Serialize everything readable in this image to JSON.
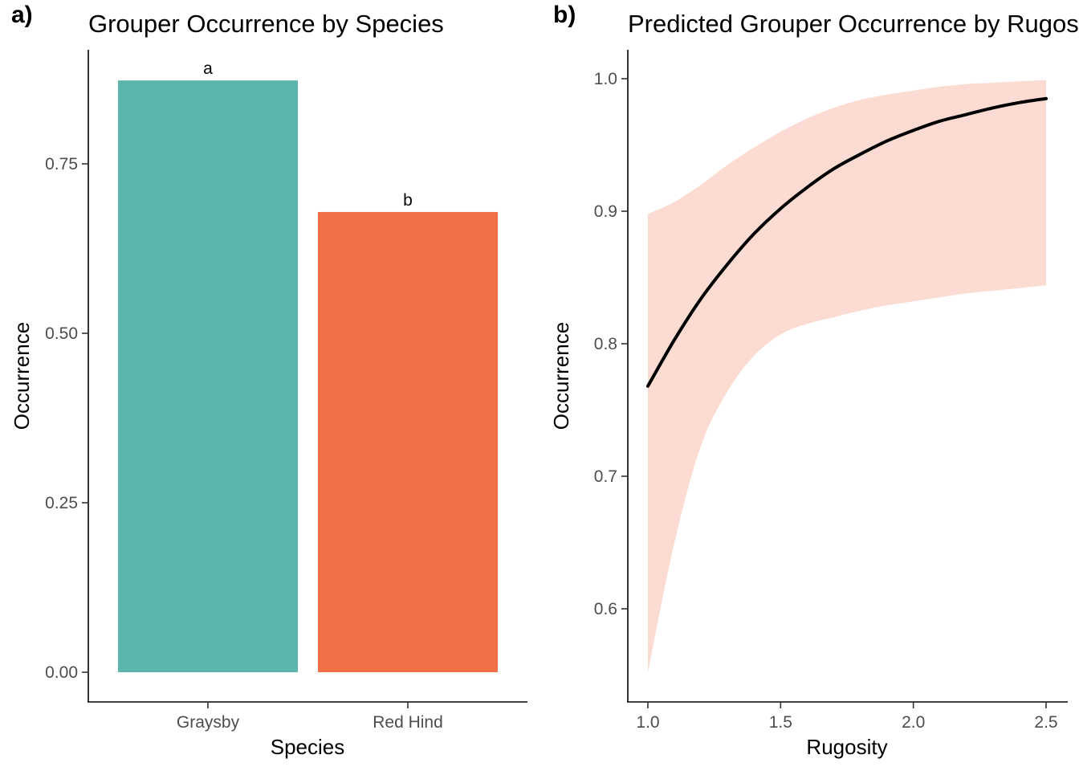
{
  "chart_data": [
    {
      "type": "bar",
      "panel_tag": "a)",
      "title": "Grouper Occurrence by Species",
      "xlabel": "Species",
      "ylabel": "Occurrence",
      "categories": [
        "Graysby",
        "Red Hind"
      ],
      "values": [
        0.873,
        0.679
      ],
      "bar_labels": [
        "a",
        "b"
      ],
      "colors": [
        "#5BB5AB",
        "#F37046"
      ],
      "ylim": [
        0,
        0.88
      ],
      "yticks": [
        0.0,
        0.25,
        0.5,
        0.75
      ],
      "ytick_labels": [
        "0.00",
        "0.25",
        "0.50",
        "0.75"
      ],
      "grid": false
    },
    {
      "type": "line",
      "panel_tag": "b)",
      "title": "Predicted Grouper Occurrence by Rugosity",
      "xlabel": "Rugosity",
      "ylabel": "Occurrence",
      "x": [
        1.0,
        1.1,
        1.2,
        1.3,
        1.4,
        1.5,
        1.6,
        1.7,
        1.8,
        1.9,
        2.0,
        2.1,
        2.2,
        2.3,
        2.4,
        2.5
      ],
      "series": [
        {
          "values": [
            0.768,
            0.803,
            0.834,
            0.86,
            0.883,
            0.902,
            0.918,
            0.932,
            0.943,
            0.953,
            0.961,
            0.968,
            0.973,
            0.978,
            0.982,
            0.985
          ],
          "lower": [
            0.552,
            0.65,
            0.723,
            0.764,
            0.791,
            0.807,
            0.815,
            0.82,
            0.825,
            0.829,
            0.832,
            0.835,
            0.838,
            0.84,
            0.842,
            0.844
          ],
          "upper": [
            0.898,
            0.907,
            0.92,
            0.935,
            0.948,
            0.96,
            0.97,
            0.978,
            0.984,
            0.988,
            0.991,
            0.994,
            0.996,
            0.997,
            0.998,
            0.999
          ]
        }
      ],
      "line_color": "#000000",
      "ribbon_color": "#FCDCD2",
      "xlim": [
        0.93,
        2.57
      ],
      "ylim": [
        0.545,
        1.022
      ],
      "xticks": [
        1.0,
        1.5,
        2.0,
        2.5
      ],
      "xtick_labels": [
        "1.0",
        "1.5",
        "2.0",
        "2.5"
      ],
      "yticks": [
        0.6,
        0.7,
        0.8,
        0.9,
        1.0
      ],
      "ytick_labels": [
        "0.6",
        "0.7",
        "0.8",
        "0.9",
        "1.0"
      ],
      "grid": false
    }
  ]
}
